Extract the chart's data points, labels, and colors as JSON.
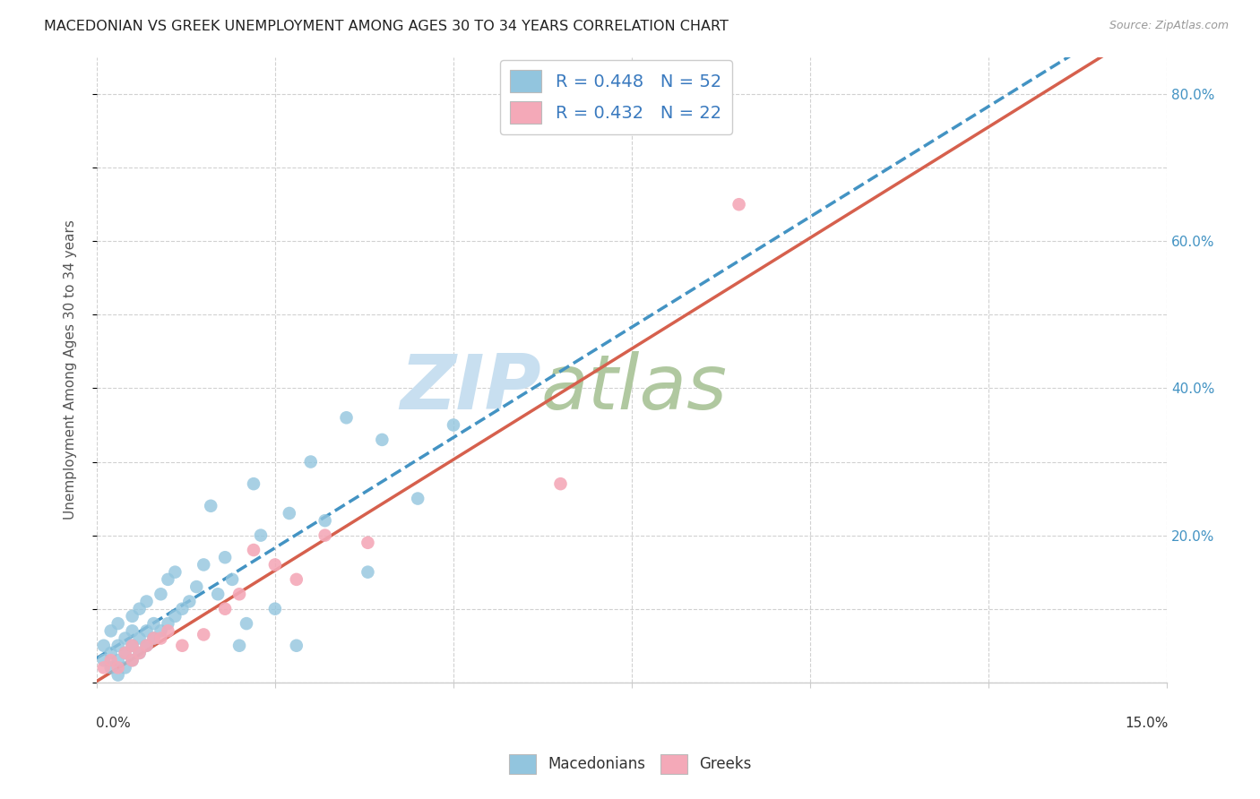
{
  "title": "MACEDONIAN VS GREEK UNEMPLOYMENT AMONG AGES 30 TO 34 YEARS CORRELATION CHART",
  "source": "Source: ZipAtlas.com",
  "ylabel": "Unemployment Among Ages 30 to 34 years",
  "legend_line1_r": "R = 0.448",
  "legend_line1_n": "N = 52",
  "legend_line2_r": "R = 0.432",
  "legend_line2_n": "N = 22",
  "macedonian_color": "#92c5de",
  "greek_color": "#f4a9b8",
  "blue_line_color": "#4393c3",
  "pink_line_color": "#d6604d",
  "macedonian_scatter_x": [
    0.001,
    0.001,
    0.002,
    0.002,
    0.002,
    0.003,
    0.003,
    0.003,
    0.003,
    0.004,
    0.004,
    0.004,
    0.005,
    0.005,
    0.005,
    0.005,
    0.006,
    0.006,
    0.006,
    0.007,
    0.007,
    0.007,
    0.008,
    0.008,
    0.009,
    0.009,
    0.01,
    0.01,
    0.011,
    0.011,
    0.012,
    0.013,
    0.014,
    0.015,
    0.016,
    0.017,
    0.018,
    0.019,
    0.02,
    0.021,
    0.022,
    0.023,
    0.025,
    0.027,
    0.028,
    0.03,
    0.032,
    0.035,
    0.038,
    0.04,
    0.045,
    0.05
  ],
  "macedonian_scatter_y": [
    0.03,
    0.05,
    0.02,
    0.04,
    0.07,
    0.01,
    0.03,
    0.05,
    0.08,
    0.02,
    0.04,
    0.06,
    0.03,
    0.05,
    0.07,
    0.09,
    0.04,
    0.06,
    0.1,
    0.05,
    0.07,
    0.11,
    0.06,
    0.08,
    0.07,
    0.12,
    0.08,
    0.14,
    0.09,
    0.15,
    0.1,
    0.11,
    0.13,
    0.16,
    0.24,
    0.12,
    0.17,
    0.14,
    0.05,
    0.08,
    0.27,
    0.2,
    0.1,
    0.23,
    0.05,
    0.3,
    0.22,
    0.36,
    0.15,
    0.33,
    0.25,
    0.35
  ],
  "greek_scatter_x": [
    0.001,
    0.002,
    0.003,
    0.004,
    0.005,
    0.005,
    0.006,
    0.007,
    0.008,
    0.009,
    0.01,
    0.012,
    0.015,
    0.018,
    0.02,
    0.022,
    0.025,
    0.028,
    0.032,
    0.038,
    0.065,
    0.09
  ],
  "greek_scatter_y": [
    0.02,
    0.03,
    0.02,
    0.04,
    0.03,
    0.05,
    0.04,
    0.05,
    0.06,
    0.06,
    0.07,
    0.05,
    0.065,
    0.1,
    0.12,
    0.18,
    0.16,
    0.14,
    0.2,
    0.19,
    0.27,
    0.65
  ],
  "xlim": [
    0.0,
    0.15
  ],
  "ylim": [
    0.0,
    0.85
  ],
  "ytick_vals": [
    0.0,
    0.2,
    0.4,
    0.6,
    0.8
  ],
  "ytick_labels": [
    "",
    "20.0%",
    "40.0%",
    "60.0%",
    "80.0%"
  ],
  "background_color": "#ffffff",
  "grid_color": "#cccccc",
  "watermark_zip": "ZIP",
  "watermark_atlas": "atlas",
  "watermark_color_zip": "#c8dff0",
  "watermark_color_atlas": "#b0c8a0"
}
